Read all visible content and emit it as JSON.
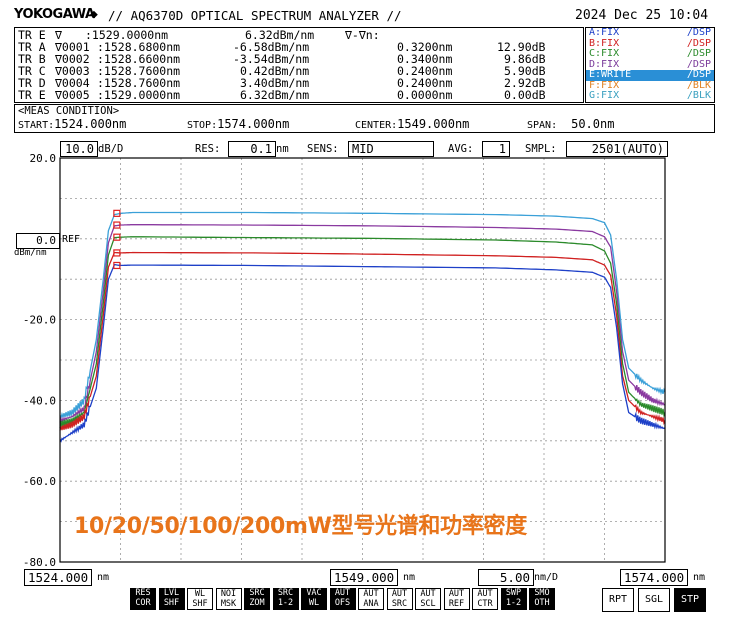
{
  "header": {
    "brand": "YOKOGAWA",
    "brand_icon": "diamond-icon",
    "model_line": "// AQ6370D OPTICAL SPECTRUM ANALYZER //",
    "datetime": "2024 Dec 25 10:04"
  },
  "markers": [
    {
      "trace": "TR E",
      "marker": "∇",
      "wavelength": ":1529.0000nm",
      "level": "6.32dBm/nm",
      "delta_wl": "∇-∇n:",
      "delta_level": ""
    },
    {
      "trace": "TR A",
      "marker": "∇0001",
      "wavelength": ":1528.6800nm",
      "level": "-6.58dBm/nm",
      "delta_wl": "0.3200nm",
      "delta_level": "12.90dB"
    },
    {
      "trace": "TR B",
      "marker": "∇0002",
      "wavelength": ":1528.6600nm",
      "level": "-3.54dBm/nm",
      "delta_wl": "0.3400nm",
      "delta_level": "9.86dB"
    },
    {
      "trace": "TR C",
      "marker": "∇0003",
      "wavelength": ":1528.7600nm",
      "level": "0.42dBm/nm",
      "delta_wl": "0.2400nm",
      "delta_level": "5.90dB"
    },
    {
      "trace": "TR D",
      "marker": "∇0004",
      "wavelength": ":1528.7600nm",
      "level": "3.40dBm/nm",
      "delta_wl": "0.2400nm",
      "delta_level": "2.92dB"
    },
    {
      "trace": "TR E",
      "marker": "∇0005",
      "wavelength": ":1529.0000nm",
      "level": "6.32dBm/nm",
      "delta_wl": "0.0000nm",
      "delta_level": "0.00dB"
    }
  ],
  "traces": [
    {
      "name": "A:FIX",
      "mode": "/DSP",
      "color": "#1e40c8"
    },
    {
      "name": "B:FIX",
      "mode": "/DSP",
      "color": "#d02020"
    },
    {
      "name": "C:FIX",
      "mode": "/DSP",
      "color": "#2a8a2a"
    },
    {
      "name": "D:FIX",
      "mode": "/DSP",
      "color": "#7a3a9a"
    },
    {
      "name": "E:WRITE",
      "mode": "/DSP",
      "color": "#ffffff",
      "active": true
    },
    {
      "name": "F:FIX",
      "mode": "/BLK",
      "color": "#e08020"
    },
    {
      "name": "G:FIX",
      "mode": "/BLK",
      "color": "#3aa0c0"
    }
  ],
  "condition": {
    "title": "<MEAS CONDITION>",
    "start_label": "START:",
    "start": "1524.000nm",
    "stop_label": "STOP:",
    "stop": "1574.000nm",
    "center_label": "CENTER:",
    "center": "1549.000nm",
    "span_label": "SPAN:",
    "span": "50.0nm"
  },
  "settings": {
    "scale": "10.0",
    "scale_unit": "dB/D",
    "res_label": "RES:",
    "res": "0.1",
    "res_unit": "nm",
    "sens_label": "SENS:",
    "sens": "MID",
    "avg_label": "AVG:",
    "avg": "1",
    "smpl_label": "SMPL:",
    "smpl": "2501(AUTO)"
  },
  "ref": {
    "value": "0.0",
    "unit": "dBm/nm",
    "label": "REF"
  },
  "bottom": {
    "start": "1524.000",
    "start_unit": "nm",
    "center": "1549.000",
    "center_unit": "nm",
    "div": "5.00",
    "div_unit": "nm/D",
    "stop": "1574.000",
    "stop_unit": "nm"
  },
  "softkeys": [
    {
      "l1": "RES",
      "l2": "COR"
    },
    {
      "l1": "LVL",
      "l2": "SHF"
    },
    {
      "l1": "WL",
      "l2": "SHF"
    },
    {
      "l1": "NOI",
      "l2": "MSK"
    },
    {
      "l1": "SRC",
      "l2": "ZOM"
    },
    {
      "l1": "SRC",
      "l2": "1-2"
    },
    {
      "l1": "VAC",
      "l2": "WL"
    },
    {
      "l1": "AUT",
      "l2": "OFS"
    },
    {
      "l1": "AUT",
      "l2": "ANA"
    },
    {
      "l1": "AUT",
      "l2": "SRC"
    },
    {
      "l1": "AUT",
      "l2": "SCL"
    },
    {
      "l1": "AUT",
      "l2": "REF"
    },
    {
      "l1": "AUT",
      "l2": "CTR"
    },
    {
      "l1": "SWP",
      "l2": "1-2"
    },
    {
      "l1": "SMO",
      "l2": "OTH"
    }
  ],
  "sweep_buttons": [
    {
      "label": "RPT",
      "on": false
    },
    {
      "label": "SGL",
      "on": false
    },
    {
      "label": "STP",
      "on": true
    }
  ],
  "overlay_caption": "10/20/50/100/200mW型号光谱和功率密度",
  "chart_data": {
    "type": "line",
    "xlabel": "",
    "ylabel": "",
    "xlim": [
      1524,
      1574
    ],
    "ylim": [
      -80,
      20
    ],
    "y_ticks": [
      "20.0",
      "-20.0",
      "-40.0",
      "-60.0",
      "-80.0"
    ],
    "grid": true,
    "series": [
      {
        "color": "#3aa0d8",
        "x": [
          1524,
          1525,
          1526,
          1527,
          1527.5,
          1528,
          1528.5,
          1529,
          1530,
          1540,
          1550,
          1560,
          1565,
          1568,
          1569,
          1569.5,
          1570,
          1570.5,
          1571,
          1572,
          1573,
          1574
        ],
        "y": [
          -44,
          -43,
          -40,
          -25,
          -12,
          2,
          6,
          6.3,
          6.5,
          6.5,
          6.3,
          6.0,
          5.6,
          5.0,
          4.0,
          1,
          -10,
          -25,
          -32,
          -35,
          -37,
          -38
        ]
      },
      {
        "color": "#8a3aa0",
        "x": [
          1524,
          1525,
          1526,
          1527,
          1527.5,
          1528,
          1528.5,
          1529,
          1530,
          1540,
          1550,
          1560,
          1565,
          1568,
          1569,
          1569.5,
          1570,
          1570.5,
          1571,
          1572,
          1573,
          1574
        ],
        "y": [
          -45,
          -44,
          -42,
          -28,
          -15,
          -1,
          3.2,
          3.4,
          3.5,
          3.4,
          3.2,
          2.8,
          2.4,
          1.8,
          0.5,
          -2,
          -13,
          -28,
          -35,
          -38,
          -40,
          -41
        ]
      },
      {
        "color": "#2a8a2a",
        "x": [
          1524,
          1525,
          1526,
          1527,
          1527.5,
          1528,
          1528.5,
          1529,
          1530,
          1540,
          1550,
          1560,
          1565,
          1568,
          1569,
          1569.5,
          1570,
          1570.5,
          1571,
          1572,
          1573,
          1574
        ],
        "y": [
          -46,
          -45,
          -43,
          -31,
          -18,
          -4,
          0.3,
          0.4,
          0.5,
          0.3,
          0.1,
          -0.3,
          -0.8,
          -1.5,
          -3,
          -6,
          -16,
          -31,
          -38,
          -41,
          -42,
          -43
        ]
      },
      {
        "color": "#d02020",
        "x": [
          1524,
          1525,
          1526,
          1527,
          1527.5,
          1528,
          1528.5,
          1529,
          1530,
          1540,
          1550,
          1560,
          1565,
          1568,
          1569,
          1569.5,
          1570,
          1570.5,
          1571,
          1572,
          1573,
          1574
        ],
        "y": [
          -47,
          -46,
          -44,
          -34,
          -21,
          -7,
          -3.4,
          -3.5,
          -3.4,
          -3.5,
          -3.8,
          -4.2,
          -4.6,
          -5.2,
          -6.5,
          -9,
          -19,
          -34,
          -40,
          -43,
          -44,
          -45
        ]
      },
      {
        "color": "#1e40c8",
        "x": [
          1524,
          1525,
          1526,
          1527,
          1527.5,
          1528,
          1528.5,
          1529,
          1530,
          1540,
          1550,
          1560,
          1565,
          1568,
          1569,
          1569.5,
          1570,
          1570.5,
          1571,
          1572,
          1573,
          1574
        ],
        "y": [
          -50,
          -48,
          -46,
          -37,
          -24,
          -10,
          -6.4,
          -6.6,
          -6.5,
          -6.6,
          -6.9,
          -7.2,
          -7.7,
          -8.3,
          -9.5,
          -12,
          -22,
          -36,
          -43,
          -45,
          -46,
          -47
        ]
      }
    ]
  }
}
